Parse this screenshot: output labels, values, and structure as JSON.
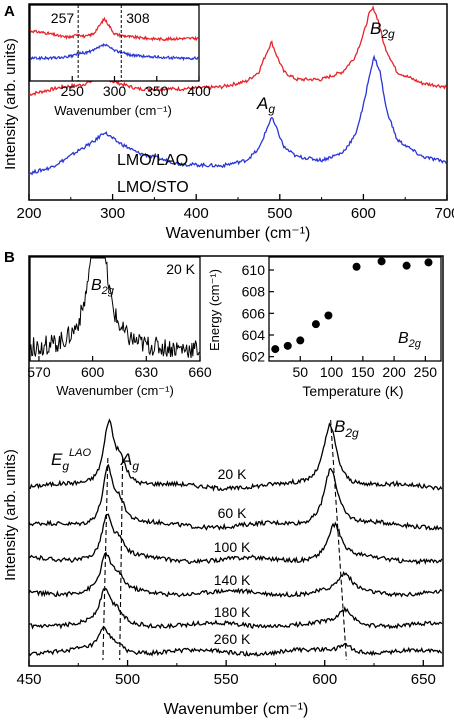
{
  "chart_data": [
    {
      "panel": "A",
      "type": "line",
      "xlabel": "Wavenumber (cm⁻¹)",
      "ylabel": "Intensity (arb. units)",
      "xlim": [
        200,
        700
      ],
      "x_ticks": [
        200,
        300,
        400,
        500,
        600,
        700
      ],
      "y_ticks_shown": false,
      "series": [
        {
          "name": "LMO/LAO",
          "color": "#e8232b",
          "x": [
            200,
            240,
            262,
            275,
            287,
            300,
            330,
            380,
            430,
            460,
            475,
            483,
            490,
            497,
            505,
            520,
            550,
            575,
            590,
            600,
            607,
            612,
            618,
            625,
            640,
            670,
            700
          ],
          "y": [
            0.54,
            0.58,
            0.59,
            0.61,
            0.64,
            0.61,
            0.57,
            0.57,
            0.58,
            0.61,
            0.66,
            0.75,
            0.82,
            0.74,
            0.66,
            0.62,
            0.62,
            0.66,
            0.74,
            0.86,
            0.97,
            1.0,
            0.93,
            0.8,
            0.66,
            0.6,
            0.58
          ]
        },
        {
          "name": "LMO/STO",
          "color": "#2a35d6",
          "x": [
            200,
            225,
            245,
            262,
            278,
            290,
            305,
            330,
            380,
            430,
            460,
            475,
            483,
            490,
            497,
            505,
            520,
            550,
            575,
            590,
            600,
            608,
            613,
            620,
            627,
            640,
            670,
            700
          ],
          "y": [
            0.12,
            0.15,
            0.2,
            0.25,
            0.29,
            0.34,
            0.29,
            0.23,
            0.17,
            0.16,
            0.19,
            0.25,
            0.34,
            0.42,
            0.35,
            0.26,
            0.21,
            0.19,
            0.23,
            0.32,
            0.48,
            0.66,
            0.74,
            0.66,
            0.47,
            0.3,
            0.21,
            0.18
          ]
        }
      ],
      "annotations": [
        "A",
        "A_g",
        "B_2g",
        "LMO/LAO",
        "LMO/STO"
      ],
      "inset": {
        "xlabel": "Wavenumber (cm⁻¹)",
        "xlim": [
          200,
          400
        ],
        "x_ticks": [
          250,
          300,
          350,
          400
        ],
        "vlines": [
          257,
          308
        ],
        "vline_labels": [
          "257",
          "308"
        ],
        "series": [
          {
            "name": "LMO/LAO",
            "color": "#e8232b",
            "x": [
              200,
              220,
              240,
              250,
              257,
              265,
              275,
              283,
              288,
              293,
              300,
              308,
              320,
              340,
              360,
              380,
              400
            ],
            "y": [
              0.66,
              0.63,
              0.58,
              0.58,
              0.62,
              0.58,
              0.62,
              0.74,
              0.82,
              0.74,
              0.62,
              0.6,
              0.58,
              0.56,
              0.55,
              0.56,
              0.56
            ]
          },
          {
            "name": "LMO/STO",
            "color": "#2a35d6",
            "x": [
              200,
              220,
              240,
              250,
              257,
              265,
              275,
              283,
              288,
              293,
              300,
              308,
              320,
              340,
              360,
              380,
              400
            ],
            "y": [
              0.3,
              0.3,
              0.31,
              0.33,
              0.36,
              0.37,
              0.4,
              0.45,
              0.48,
              0.45,
              0.4,
              0.38,
              0.34,
              0.32,
              0.31,
              0.3,
              0.3
            ]
          }
        ]
      }
    },
    {
      "panel": "B",
      "type": "line",
      "xlabel": "Wavenumber (cm⁻¹)",
      "ylabel": "Intensity (arb. units)",
      "xlim": [
        450,
        660
      ],
      "x_ticks": [
        450,
        500,
        550,
        600,
        650
      ],
      "temperatures": [
        "20 K",
        "60 K",
        "100 K",
        "140 K",
        "180 K",
        "260 K"
      ],
      "Ag_peak_positions": [
        490.5,
        490.0,
        489.5,
        489.0,
        488.5,
        488.0
      ],
      "B2g_peak_positions": [
        602.7,
        603.1,
        605.0,
        610.2,
        610.5,
        610.8
      ],
      "B2g_peak_heights": [
        0.9,
        0.85,
        0.5,
        0.25,
        0.2,
        0.12
      ],
      "Ag_peak_heights": [
        0.9,
        0.8,
        0.6,
        0.5,
        0.45,
        0.3
      ],
      "annotations": [
        "B",
        "E_g^LAO",
        "A_g",
        "B_2g"
      ],
      "inset_left": {
        "label": "B_2g",
        "temperature": "20 K",
        "xlabel": "Wavenumber (cm⁻¹)",
        "xlim": [
          565,
          660
        ],
        "x_ticks": [
          570,
          600,
          630,
          660
        ]
      },
      "inset_right": {
        "type": "scatter",
        "label": "B_2g",
        "xlabel": "Temperature (K)",
        "ylabel": "Energy (cm⁻¹)",
        "xlim": [
          0,
          275
        ],
        "ylim": [
          601.6,
          611.2
        ],
        "x_ticks": [
          50,
          100,
          150,
          200,
          250
        ],
        "y_ticks": [
          602,
          604,
          606,
          608,
          610
        ],
        "points": [
          {
            "x": 10,
            "y": 602.7
          },
          {
            "x": 30,
            "y": 603.0
          },
          {
            "x": 50,
            "y": 603.5
          },
          {
            "x": 75,
            "y": 605.0
          },
          {
            "x": 95,
            "y": 605.8
          },
          {
            "x": 140,
            "y": 610.3
          },
          {
            "x": 180,
            "y": 610.8
          },
          {
            "x": 220,
            "y": 610.4
          },
          {
            "x": 255,
            "y": 610.7
          }
        ]
      }
    }
  ]
}
